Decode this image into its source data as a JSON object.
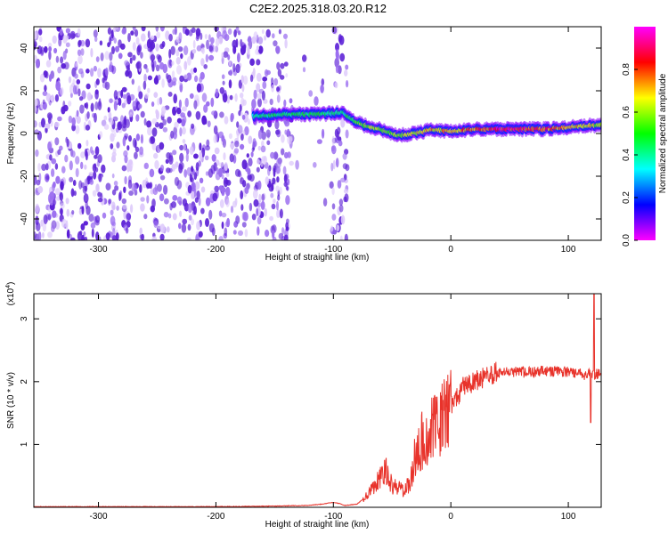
{
  "title": "C2E2.2025.318.03.20.R12",
  "chart_data": [
    {
      "type": "heatmap",
      "xlabel": "Height of straight line (km)",
      "ylabel": "Frequency (Hz)",
      "xlim": [
        -355,
        128
      ],
      "ylim": [
        -50,
        50
      ],
      "xticks": [
        -300,
        -200,
        -100,
        0,
        100
      ],
      "yticks": [
        -40,
        -20,
        0,
        20,
        40
      ],
      "colorbar": {
        "label": "Normalized spectral amplitude",
        "range": [
          0,
          1
        ],
        "ticks": [
          "0.0",
          "0.2",
          "0.4",
          "0.6",
          "0.8"
        ],
        "colors": [
          "#ff00ff",
          "#0000ff",
          "#00ffff",
          "#00ff00",
          "#ffff00",
          "#ff0000",
          "#ff00ff"
        ]
      },
      "noise_region": {
        "x_from": -355,
        "x_to": -88,
        "freq_range": [
          -50,
          50
        ],
        "amplitude": 0.15
      },
      "gap_region": {
        "x_from": -135,
        "x_to": -102
      },
      "ridge": [
        {
          "x": -168,
          "freq": 8,
          "amplitude": 0.4
        },
        {
          "x": -140,
          "freq": 9,
          "amplitude": 0.45
        },
        {
          "x": -110,
          "freq": 9,
          "amplitude": 0.45
        },
        {
          "x": -92,
          "freq": 10,
          "amplitude": 0.4
        },
        {
          "x": -85,
          "freq": 7,
          "amplitude": 0.5
        },
        {
          "x": -75,
          "freq": 4,
          "amplitude": 0.55
        },
        {
          "x": -60,
          "freq": 2,
          "amplitude": 0.6
        },
        {
          "x": -45,
          "freq": -1,
          "amplitude": 0.6
        },
        {
          "x": -30,
          "freq": 0,
          "amplitude": 0.65
        },
        {
          "x": -15,
          "freq": 2,
          "amplitude": 0.7
        },
        {
          "x": 0,
          "freq": 1,
          "amplitude": 0.7
        },
        {
          "x": 20,
          "freq": 2,
          "amplitude": 0.75
        },
        {
          "x": 40,
          "freq": 2,
          "amplitude": 0.85
        },
        {
          "x": 60,
          "freq": 2,
          "amplitude": 0.85
        },
        {
          "x": 80,
          "freq": 2,
          "amplitude": 0.8
        },
        {
          "x": 100,
          "freq": 3,
          "amplitude": 0.7
        },
        {
          "x": 128,
          "freq": 4,
          "amplitude": 0.6
        }
      ]
    },
    {
      "type": "line",
      "xlabel": "Height of straight line (km)",
      "ylabel": "SNR (10 * v/v)",
      "y_scale_label": "(x10",
      "y_scale_exponent": "4",
      "y_scale_close": ")",
      "xlim": [
        -355,
        128
      ],
      "ylim": [
        0,
        3.4
      ],
      "xticks": [
        -300,
        -200,
        -100,
        0,
        100
      ],
      "yticks": [
        1,
        2,
        3
      ],
      "series": [
        {
          "color": "#e8332b",
          "points": [
            [
              -355,
              0.01
            ],
            [
              -300,
              0.01
            ],
            [
              -250,
              0.01
            ],
            [
              -200,
              0.01
            ],
            [
              -150,
              0.02
            ],
            [
              -120,
              0.03
            ],
            [
              -110,
              0.05
            ],
            [
              -100,
              0.08
            ],
            [
              -95,
              0.06
            ],
            [
              -90,
              0.03
            ],
            [
              -80,
              0.05
            ],
            [
              -70,
              0.2
            ],
            [
              -65,
              0.35
            ],
            [
              -60,
              0.45
            ],
            [
              -55,
              0.55
            ],
            [
              -50,
              0.35
            ],
            [
              -45,
              0.3
            ],
            [
              -40,
              0.25
            ],
            [
              -35,
              0.4
            ],
            [
              -30,
              0.85
            ],
            [
              -25,
              1.05
            ],
            [
              -20,
              1.1
            ],
            [
              -15,
              1.25
            ],
            [
              -10,
              1.35
            ],
            [
              -5,
              1.45
            ],
            [
              0,
              1.6
            ],
            [
              5,
              1.75
            ],
            [
              10,
              1.9
            ],
            [
              15,
              1.95
            ],
            [
              20,
              2.0
            ],
            [
              25,
              2.05
            ],
            [
              30,
              2.1
            ],
            [
              40,
              2.15
            ],
            [
              50,
              2.17
            ],
            [
              60,
              2.15
            ],
            [
              70,
              2.15
            ],
            [
              80,
              2.17
            ],
            [
              90,
              2.15
            ],
            [
              100,
              2.17
            ],
            [
              110,
              2.12
            ],
            [
              115,
              2.1
            ],
            [
              120,
              2.12
            ],
            [
              128,
              2.12
            ]
          ]
        }
      ]
    }
  ]
}
